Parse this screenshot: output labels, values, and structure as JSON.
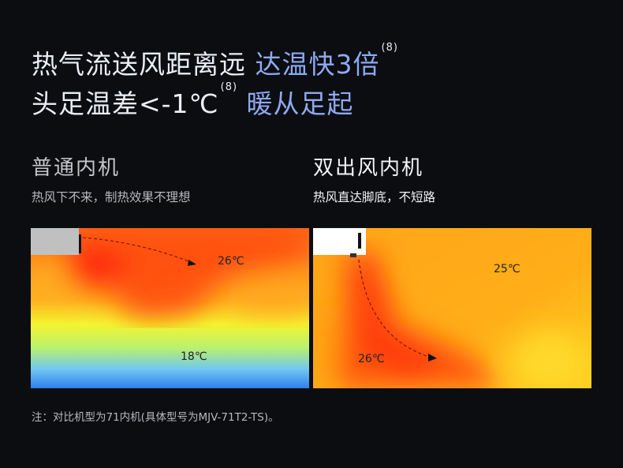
{
  "headline": {
    "line1_white": "热气流送风距离远",
    "line1_blue": "达温快3倍",
    "line1_footnote": "(8)",
    "line2_white": "头足温差<-1℃",
    "line2_footnote": "(8)",
    "line2_blue": "暖从足起"
  },
  "left": {
    "title": "普通内机",
    "desc": "热风下不来，制热效果不理想",
    "temp_top": "26℃",
    "temp_bottom": "18℃"
  },
  "right": {
    "title": "双出风内机",
    "desc": "热风直达脚底，不短路",
    "temp_top": "25℃",
    "temp_bottom": "26℃"
  },
  "note": "注：对比机型为71内机(具体型号为MJV-71T2-TS)。",
  "colors": {
    "background": "#0c0d10",
    "accent_blue": "#8ea9f2",
    "title_gray": "#c4c6cb"
  }
}
